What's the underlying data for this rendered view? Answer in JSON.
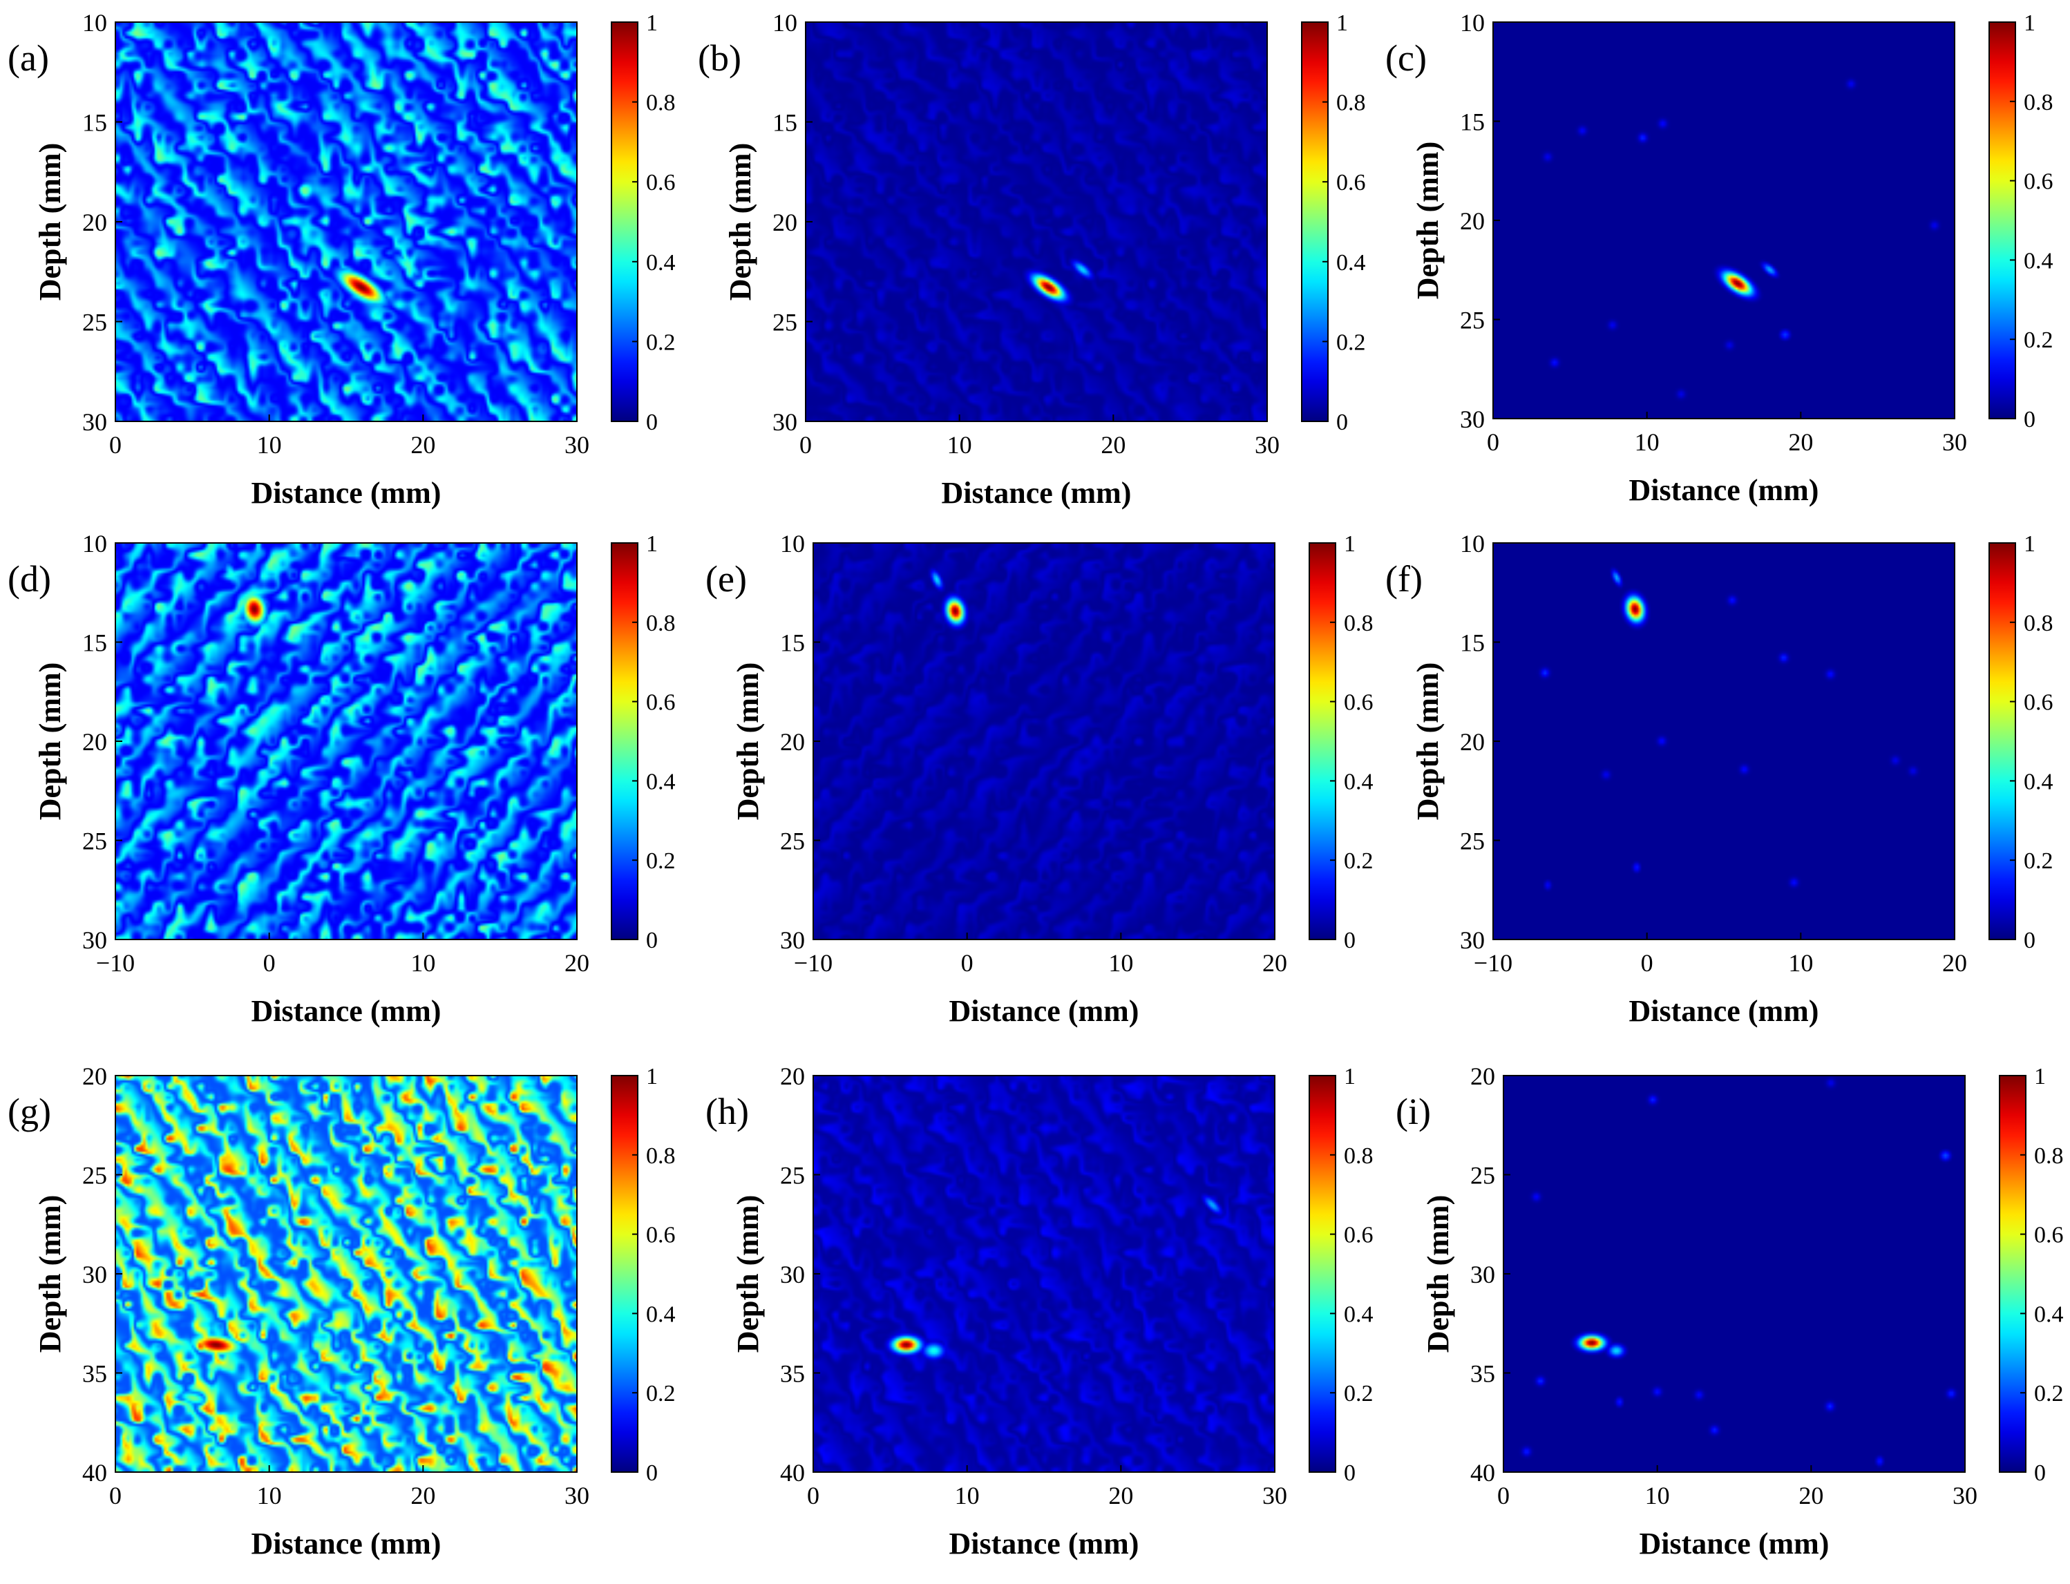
{
  "figure": {
    "type": "heatmap",
    "colormap": "jet",
    "panels_grid": [
      3,
      3
    ]
  },
  "chart_data": [
    {
      "type": "heatmap",
      "panel_label": "(a)",
      "xlabel": "Distance (mm)",
      "ylabel": "Depth (mm)",
      "xlim": [
        0,
        30
      ],
      "ylim": [
        10,
        30
      ],
      "y_reversed": true,
      "x_ticks": [
        "0",
        "10",
        "20",
        "30"
      ],
      "y_ticks": [
        "10",
        "15",
        "20",
        "25",
        "30"
      ],
      "clim": [
        0,
        1
      ],
      "colorbar_ticks": [
        "0",
        "0.2",
        "0.4",
        "0.6",
        "0.8",
        "1"
      ],
      "background_level": 0.3,
      "noise": 0.55,
      "streak_angle_deg": -35,
      "hotspots": [
        {
          "x": 16,
          "y": 23.3,
          "value": 1.0,
          "sx": 1.8,
          "sy": 0.6,
          "rot_deg": -25
        },
        {
          "x": 19,
          "y": 22.2,
          "value": 0.45,
          "sx": 1.2,
          "sy": 0.4,
          "rot_deg": -30
        }
      ]
    },
    {
      "type": "heatmap",
      "panel_label": "(b)",
      "xlabel": "Distance (mm)",
      "ylabel": "Depth (mm)",
      "xlim": [
        0,
        30
      ],
      "ylim": [
        10,
        30
      ],
      "y_reversed": true,
      "x_ticks": [
        "0",
        "10",
        "20",
        "30"
      ],
      "y_ticks": [
        "10",
        "15",
        "20",
        "25",
        "30"
      ],
      "clim": [
        0,
        1
      ],
      "colorbar_ticks": [
        "0",
        "0.2",
        "0.4",
        "0.6",
        "0.8",
        "1"
      ],
      "background_level": 0.08,
      "noise": 0.18,
      "streak_angle_deg": -35,
      "hotspots": [
        {
          "x": 15.8,
          "y": 23.3,
          "value": 1.0,
          "sx": 1.2,
          "sy": 0.45,
          "rot_deg": -25
        },
        {
          "x": 18,
          "y": 22.4,
          "value": 0.35,
          "sx": 0.8,
          "sy": 0.3,
          "rot_deg": -30
        }
      ]
    },
    {
      "type": "heatmap",
      "panel_label": "(c)",
      "xlabel": "Distance (mm)",
      "ylabel": "Depth (mm)",
      "xlim": [
        0,
        30
      ],
      "ylim": [
        10,
        30
      ],
      "y_reversed": true,
      "x_ticks": [
        "0",
        "10",
        "20",
        "30"
      ],
      "y_ticks": [
        "10",
        "15",
        "20",
        "25",
        "30"
      ],
      "clim": [
        0,
        1
      ],
      "colorbar_ticks": [
        "0",
        "0.2",
        "0.4",
        "0.6",
        "0.8",
        "1"
      ],
      "background_level": 0.02,
      "noise": 0.0,
      "streak_angle_deg": 0,
      "hotspots": [
        {
          "x": 15.9,
          "y": 23.2,
          "value": 1.0,
          "sx": 1.1,
          "sy": 0.45,
          "rot_deg": -25
        },
        {
          "x": 18,
          "y": 22.5,
          "value": 0.3,
          "sx": 0.6,
          "sy": 0.25,
          "rot_deg": -30
        },
        {
          "x": 19,
          "y": 25.8,
          "value": 0.18,
          "sx": 0.4,
          "sy": 0.3,
          "rot_deg": 0
        }
      ]
    },
    {
      "type": "heatmap",
      "panel_label": "(d)",
      "xlabel": "Distance (mm)",
      "ylabel": "Depth (mm)",
      "xlim": [
        -10,
        20
      ],
      "ylim": [
        10,
        30
      ],
      "y_reversed": true,
      "x_ticks": [
        "−10",
        "0",
        "10",
        "20"
      ],
      "y_ticks": [
        "10",
        "15",
        "20",
        "25",
        "30"
      ],
      "clim": [
        0,
        1
      ],
      "colorbar_ticks": [
        "0",
        "0.2",
        "0.4",
        "0.6",
        "0.8",
        "1"
      ],
      "background_level": 0.3,
      "noise": 0.55,
      "streak_angle_deg": 35,
      "hotspots": [
        {
          "x": -1,
          "y": 13.3,
          "value": 1.0,
          "sx": 0.9,
          "sy": 0.8,
          "rot_deg": -55
        },
        {
          "x": -2.5,
          "y": 11.5,
          "value": 0.4,
          "sx": 0.8,
          "sy": 0.4,
          "rot_deg": -55
        }
      ]
    },
    {
      "type": "heatmap",
      "panel_label": "(e)",
      "xlabel": "Distance (mm)",
      "ylabel": "Depth (mm)",
      "xlim": [
        -10,
        20
      ],
      "ylim": [
        10,
        30
      ],
      "y_reversed": true,
      "x_ticks": [
        "−10",
        "0",
        "10",
        "20"
      ],
      "y_ticks": [
        "10",
        "15",
        "20",
        "25",
        "30"
      ],
      "clim": [
        0,
        1
      ],
      "colorbar_ticks": [
        "0",
        "0.2",
        "0.4",
        "0.6",
        "0.8",
        "1"
      ],
      "background_level": 0.08,
      "noise": 0.18,
      "streak_angle_deg": 35,
      "hotspots": [
        {
          "x": -0.8,
          "y": 13.4,
          "value": 1.0,
          "sx": 0.7,
          "sy": 0.6,
          "rot_deg": -55
        },
        {
          "x": -2,
          "y": 11.8,
          "value": 0.35,
          "sx": 0.6,
          "sy": 0.3,
          "rot_deg": -55
        }
      ]
    },
    {
      "type": "heatmap",
      "panel_label": "(f)",
      "xlabel": "Distance (mm)",
      "ylabel": "Depth (mm)",
      "xlim": [
        -10,
        20
      ],
      "ylim": [
        10,
        30
      ],
      "y_reversed": true,
      "x_ticks": [
        "−10",
        "0",
        "10",
        "20"
      ],
      "y_ticks": [
        "10",
        "15",
        "20",
        "25",
        "30"
      ],
      "clim": [
        0,
        1
      ],
      "colorbar_ticks": [
        "0",
        "0.2",
        "0.4",
        "0.6",
        "0.8",
        "1"
      ],
      "background_level": 0.02,
      "noise": 0.0,
      "streak_angle_deg": 0,
      "hotspots": [
        {
          "x": -0.8,
          "y": 13.3,
          "value": 1.0,
          "sx": 0.7,
          "sy": 0.6,
          "rot_deg": -55
        },
        {
          "x": -2,
          "y": 11.7,
          "value": 0.3,
          "sx": 0.5,
          "sy": 0.25,
          "rot_deg": -55
        },
        {
          "x": -0.7,
          "y": 26.4,
          "value": 0.15,
          "sx": 0.3,
          "sy": 0.3,
          "rot_deg": 0
        },
        {
          "x": -6.5,
          "y": 27.3,
          "value": 0.12,
          "sx": 0.3,
          "sy": 0.3,
          "rot_deg": 0
        }
      ]
    },
    {
      "type": "heatmap",
      "panel_label": "(g)",
      "xlabel": "Distance (mm)",
      "ylabel": "Depth (mm)",
      "xlim": [
        0,
        30
      ],
      "ylim": [
        20,
        40
      ],
      "y_reversed": true,
      "x_ticks": [
        "0",
        "10",
        "20",
        "30"
      ],
      "y_ticks": [
        "20",
        "25",
        "30",
        "35",
        "40"
      ],
      "clim": [
        0,
        1
      ],
      "colorbar_ticks": [
        "0",
        "0.2",
        "0.4",
        "0.6",
        "0.8",
        "1"
      ],
      "background_level": 0.45,
      "noise": 0.7,
      "streak_angle_deg": -30,
      "hotspots": [
        {
          "x": 6.5,
          "y": 33.6,
          "value": 1.0,
          "sx": 1.8,
          "sy": 0.55,
          "rot_deg": -5
        },
        {
          "x": 26.5,
          "y": 26.3,
          "value": 0.6,
          "sx": 1.3,
          "sy": 0.35,
          "rot_deg": -35
        },
        {
          "x": 5,
          "y": 36.3,
          "value": 0.5,
          "sx": 1.2,
          "sy": 0.4,
          "rot_deg": -10
        }
      ]
    },
    {
      "type": "heatmap",
      "panel_label": "(h)",
      "xlabel": "Distance (mm)",
      "ylabel": "Depth (mm)",
      "xlim": [
        0,
        30
      ],
      "ylim": [
        20,
        40
      ],
      "y_reversed": true,
      "x_ticks": [
        "0",
        "10",
        "20",
        "30"
      ],
      "y_ticks": [
        "20",
        "25",
        "30",
        "35",
        "40"
      ],
      "clim": [
        0,
        1
      ],
      "colorbar_ticks": [
        "0",
        "0.2",
        "0.4",
        "0.6",
        "0.8",
        "1"
      ],
      "background_level": 0.1,
      "noise": 0.3,
      "streak_angle_deg": -30,
      "hotspots": [
        {
          "x": 6,
          "y": 33.6,
          "value": 1.0,
          "sx": 1.0,
          "sy": 0.45,
          "rot_deg": 0
        },
        {
          "x": 7.8,
          "y": 33.9,
          "value": 0.4,
          "sx": 0.8,
          "sy": 0.45,
          "rot_deg": 0
        },
        {
          "x": 26,
          "y": 26.5,
          "value": 0.3,
          "sx": 0.8,
          "sy": 0.3,
          "rot_deg": -35
        }
      ]
    },
    {
      "type": "heatmap",
      "panel_label": "(i)",
      "xlabel": "Distance (mm)",
      "ylabel": "Depth (mm)",
      "xlim": [
        0,
        30
      ],
      "ylim": [
        20,
        40
      ],
      "y_reversed": true,
      "x_ticks": [
        "0",
        "10",
        "20",
        "30"
      ],
      "y_ticks": [
        "20",
        "25",
        "30",
        "35",
        "40"
      ],
      "clim": [
        0,
        1
      ],
      "colorbar_ticks": [
        "0",
        "0.2",
        "0.4",
        "0.6",
        "0.8",
        "1"
      ],
      "background_level": 0.02,
      "noise": 0.0,
      "streak_angle_deg": 0,
      "hotspots": [
        {
          "x": 5.7,
          "y": 33.5,
          "value": 1.0,
          "sx": 0.9,
          "sy": 0.4,
          "rot_deg": 0
        },
        {
          "x": 7.3,
          "y": 33.9,
          "value": 0.35,
          "sx": 0.6,
          "sy": 0.35,
          "rot_deg": 0
        },
        {
          "x": 28.8,
          "y": 24,
          "value": 0.2,
          "sx": 0.4,
          "sy": 0.3,
          "rot_deg": 0
        },
        {
          "x": 7.5,
          "y": 36.5,
          "value": 0.15,
          "sx": 0.3,
          "sy": 0.3,
          "rot_deg": 0
        },
        {
          "x": 24.5,
          "y": 39.5,
          "value": 0.15,
          "sx": 0.3,
          "sy": 0.3,
          "rot_deg": 0
        }
      ]
    }
  ]
}
